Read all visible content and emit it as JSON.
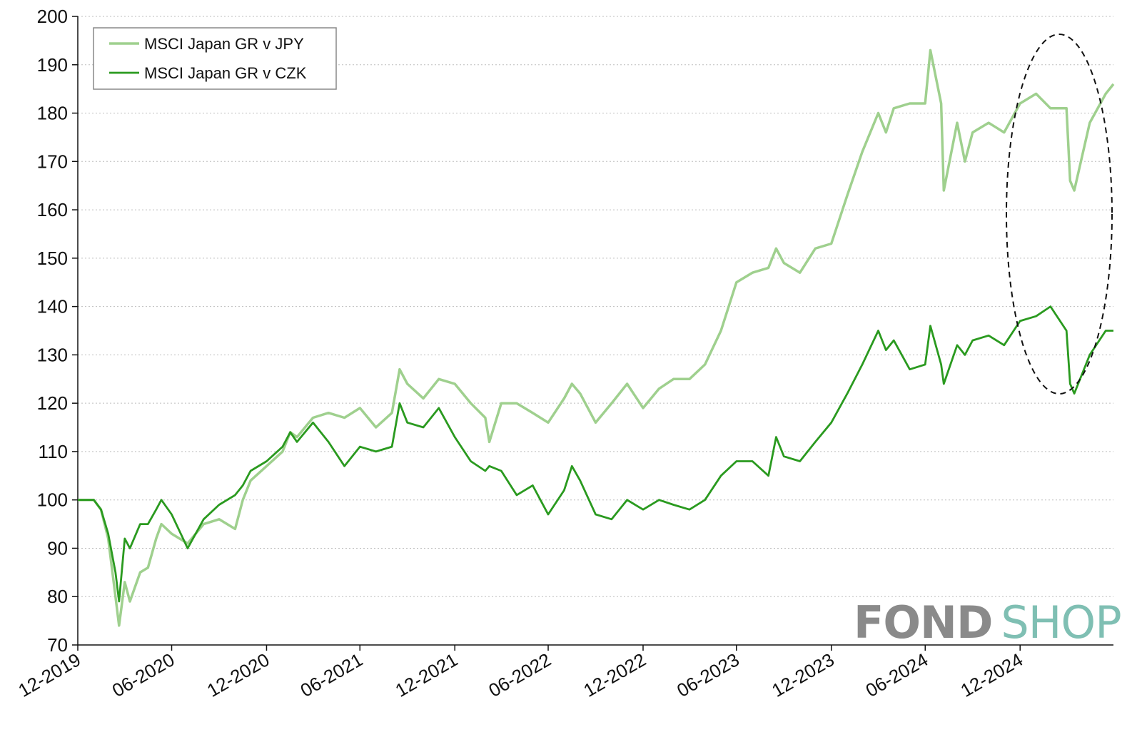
{
  "chart_data": {
    "type": "line",
    "title": "",
    "xlabel": "",
    "ylabel": "",
    "ylim": [
      70,
      200
    ],
    "yticks": [
      70,
      80,
      90,
      100,
      110,
      120,
      130,
      140,
      150,
      160,
      170,
      180,
      190,
      200
    ],
    "xlim": [
      "2019-12-31",
      "2025-06-30"
    ],
    "xticks": [
      "12-2019",
      "06-2020",
      "12-2020",
      "06-2021",
      "12-2021",
      "06-2022",
      "12-2022",
      "06-2023",
      "12-2023",
      "06-2024",
      "12-2024"
    ],
    "grid": "horizontal-dotted",
    "legend": "top-left",
    "annotation": "dashed ellipse highlighting 2025 drawdown",
    "series": [
      {
        "name": "MSCI Japan GR v JPY",
        "color": "#9fd08e",
        "points": [
          [
            "2019-12-31",
            100
          ],
          [
            "2020-01-31",
            100
          ],
          [
            "2020-02-14",
            98
          ],
          [
            "2020-02-28",
            92
          ],
          [
            "2020-03-13",
            80
          ],
          [
            "2020-03-20",
            74
          ],
          [
            "2020-03-31",
            83
          ],
          [
            "2020-04-10",
            79
          ],
          [
            "2020-04-30",
            85
          ],
          [
            "2020-05-15",
            86
          ],
          [
            "2020-05-31",
            92
          ],
          [
            "2020-06-10",
            95
          ],
          [
            "2020-06-30",
            93
          ],
          [
            "2020-07-31",
            91
          ],
          [
            "2020-08-31",
            95
          ],
          [
            "2020-09-30",
            96
          ],
          [
            "2020-10-31",
            94
          ],
          [
            "2020-11-15",
            100
          ],
          [
            "2020-11-30",
            104
          ],
          [
            "2020-12-31",
            107
          ],
          [
            "2021-01-31",
            110
          ],
          [
            "2021-02-15",
            114
          ],
          [
            "2021-02-28",
            113
          ],
          [
            "2021-03-31",
            117
          ],
          [
            "2021-04-30",
            118
          ],
          [
            "2021-05-31",
            117
          ],
          [
            "2021-06-30",
            119
          ],
          [
            "2021-07-31",
            115
          ],
          [
            "2021-08-31",
            118
          ],
          [
            "2021-09-15",
            127
          ],
          [
            "2021-09-30",
            124
          ],
          [
            "2021-10-31",
            121
          ],
          [
            "2021-11-30",
            125
          ],
          [
            "2021-12-31",
            124
          ],
          [
            "2022-01-31",
            120
          ],
          [
            "2022-02-28",
            117
          ],
          [
            "2022-03-08",
            112
          ],
          [
            "2022-03-31",
            120
          ],
          [
            "2022-04-30",
            120
          ],
          [
            "2022-05-31",
            118
          ],
          [
            "2022-06-30",
            116
          ],
          [
            "2022-07-31",
            121
          ],
          [
            "2022-08-15",
            124
          ],
          [
            "2022-08-31",
            122
          ],
          [
            "2022-09-30",
            116
          ],
          [
            "2022-10-31",
            120
          ],
          [
            "2022-11-30",
            124
          ],
          [
            "2022-12-31",
            119
          ],
          [
            "2023-01-31",
            123
          ],
          [
            "2023-02-28",
            125
          ],
          [
            "2023-03-31",
            125
          ],
          [
            "2023-04-30",
            128
          ],
          [
            "2023-05-31",
            135
          ],
          [
            "2023-06-30",
            145
          ],
          [
            "2023-07-31",
            147
          ],
          [
            "2023-08-31",
            148
          ],
          [
            "2023-09-15",
            152
          ],
          [
            "2023-09-30",
            149
          ],
          [
            "2023-10-31",
            147
          ],
          [
            "2023-11-30",
            152
          ],
          [
            "2023-12-31",
            153
          ],
          [
            "2024-01-31",
            163
          ],
          [
            "2024-02-29",
            172
          ],
          [
            "2024-03-31",
            180
          ],
          [
            "2024-04-15",
            176
          ],
          [
            "2024-04-30",
            181
          ],
          [
            "2024-05-31",
            182
          ],
          [
            "2024-06-30",
            182
          ],
          [
            "2024-07-10",
            193
          ],
          [
            "2024-07-31",
            182
          ],
          [
            "2024-08-05",
            164
          ],
          [
            "2024-08-31",
            178
          ],
          [
            "2024-09-15",
            170
          ],
          [
            "2024-09-30",
            176
          ],
          [
            "2024-10-31",
            178
          ],
          [
            "2024-11-30",
            176
          ],
          [
            "2024-12-31",
            182
          ],
          [
            "2025-01-31",
            184
          ],
          [
            "2025-02-28",
            181
          ],
          [
            "2025-03-31",
            181
          ],
          [
            "2025-04-07",
            166
          ],
          [
            "2025-04-15",
            164
          ],
          [
            "2025-05-15",
            178
          ],
          [
            "2025-06-15",
            184
          ],
          [
            "2025-06-30",
            186
          ]
        ]
      },
      {
        "name": "MSCI Japan GR v CZK",
        "color": "#2a9a1f",
        "points": [
          [
            "2019-12-31",
            100
          ],
          [
            "2020-01-31",
            100
          ],
          [
            "2020-02-14",
            98
          ],
          [
            "2020-02-28",
            93
          ],
          [
            "2020-03-13",
            85
          ],
          [
            "2020-03-20",
            79
          ],
          [
            "2020-03-31",
            92
          ],
          [
            "2020-04-10",
            90
          ],
          [
            "2020-04-30",
            95
          ],
          [
            "2020-05-15",
            95
          ],
          [
            "2020-05-31",
            98
          ],
          [
            "2020-06-10",
            100
          ],
          [
            "2020-06-30",
            97
          ],
          [
            "2020-07-31",
            90
          ],
          [
            "2020-08-31",
            96
          ],
          [
            "2020-09-30",
            99
          ],
          [
            "2020-10-31",
            101
          ],
          [
            "2020-11-15",
            103
          ],
          [
            "2020-11-30",
            106
          ],
          [
            "2020-12-31",
            108
          ],
          [
            "2021-01-31",
            111
          ],
          [
            "2021-02-15",
            114
          ],
          [
            "2021-02-28",
            112
          ],
          [
            "2021-03-31",
            116
          ],
          [
            "2021-04-30",
            112
          ],
          [
            "2021-05-31",
            107
          ],
          [
            "2021-06-30",
            111
          ],
          [
            "2021-07-31",
            110
          ],
          [
            "2021-08-31",
            111
          ],
          [
            "2021-09-15",
            120
          ],
          [
            "2021-09-30",
            116
          ],
          [
            "2021-10-31",
            115
          ],
          [
            "2021-11-30",
            119
          ],
          [
            "2021-12-31",
            113
          ],
          [
            "2022-01-31",
            108
          ],
          [
            "2022-02-28",
            106
          ],
          [
            "2022-03-08",
            107
          ],
          [
            "2022-03-31",
            106
          ],
          [
            "2022-04-30",
            101
          ],
          [
            "2022-05-31",
            103
          ],
          [
            "2022-06-30",
            97
          ],
          [
            "2022-07-31",
            102
          ],
          [
            "2022-08-15",
            107
          ],
          [
            "2022-08-31",
            104
          ],
          [
            "2022-09-30",
            97
          ],
          [
            "2022-10-31",
            96
          ],
          [
            "2022-11-30",
            100
          ],
          [
            "2022-12-31",
            98
          ],
          [
            "2023-01-31",
            100
          ],
          [
            "2023-02-28",
            99
          ],
          [
            "2023-03-31",
            98
          ],
          [
            "2023-04-30",
            100
          ],
          [
            "2023-05-31",
            105
          ],
          [
            "2023-06-30",
            108
          ],
          [
            "2023-07-31",
            108
          ],
          [
            "2023-08-31",
            105
          ],
          [
            "2023-09-15",
            113
          ],
          [
            "2023-09-30",
            109
          ],
          [
            "2023-10-31",
            108
          ],
          [
            "2023-11-30",
            112
          ],
          [
            "2023-12-31",
            116
          ],
          [
            "2024-01-31",
            122
          ],
          [
            "2024-02-29",
            128
          ],
          [
            "2024-03-31",
            135
          ],
          [
            "2024-04-15",
            131
          ],
          [
            "2024-04-30",
            133
          ],
          [
            "2024-05-31",
            127
          ],
          [
            "2024-06-30",
            128
          ],
          [
            "2024-07-10",
            136
          ],
          [
            "2024-07-31",
            128
          ],
          [
            "2024-08-05",
            124
          ],
          [
            "2024-08-31",
            132
          ],
          [
            "2024-09-15",
            130
          ],
          [
            "2024-09-30",
            133
          ],
          [
            "2024-10-31",
            134
          ],
          [
            "2024-11-30",
            132
          ],
          [
            "2024-12-31",
            137
          ],
          [
            "2025-01-31",
            138
          ],
          [
            "2025-02-28",
            140
          ],
          [
            "2025-03-31",
            135
          ],
          [
            "2025-04-07",
            124
          ],
          [
            "2025-04-15",
            122
          ],
          [
            "2025-05-15",
            130
          ],
          [
            "2025-06-15",
            135
          ],
          [
            "2025-06-30",
            135
          ]
        ]
      }
    ]
  },
  "logo": {
    "part1": "FOND",
    "part2": "SHOP"
  }
}
